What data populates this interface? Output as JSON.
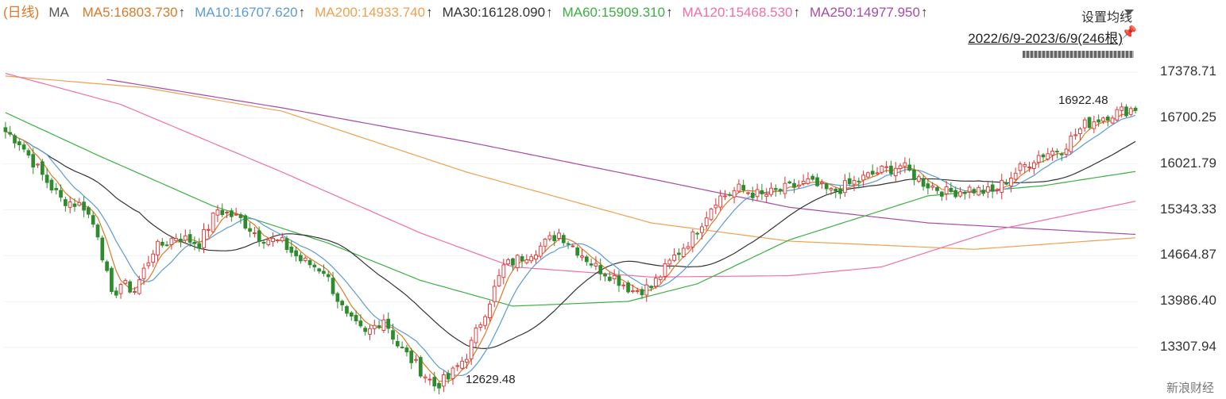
{
  "legend": {
    "period": "(日线)",
    "ma": "MA",
    "items": [
      {
        "label": "MA5:16803.730",
        "arrow": "↑",
        "color": "#d97a2a"
      },
      {
        "label": "MA10:16707.620",
        "arrow": "↑",
        "color": "#5b9bd5"
      },
      {
        "label": "MA200:14933.740",
        "arrow": "↑",
        "color": "#f0a050"
      },
      {
        "label": "MA30:16128.090",
        "arrow": "↑",
        "color": "#333333"
      },
      {
        "label": "MA60:15909.310",
        "arrow": "↑",
        "color": "#3cb043"
      },
      {
        "label": "MA120:15468.530",
        "arrow": "↑",
        "color": "#f06fa8"
      },
      {
        "label": "MA250:14977.950",
        "arrow": "↑",
        "color": "#a64ca6"
      }
    ]
  },
  "toolbar": {
    "settings_label": "设置均线",
    "range_label": "2022/6/9-2023/6/9(246根)",
    "pin_icon": "pin-icon"
  },
  "watermark": "新浪财经",
  "chart_data": {
    "type": "candlestick",
    "period": "daily",
    "ylim": [
      12700,
      17600
    ],
    "y_ticks": [
      "17378.71",
      "16700.25",
      "16021.79",
      "15343.33",
      "14664.87",
      "13986.40",
      "13307.94"
    ],
    "annotations": {
      "high": "16922.48",
      "low": "12629.48"
    },
    "colors": {
      "up": "#e03030",
      "down": "#2e8b2e"
    },
    "anchors": [
      [
        0,
        16500
      ],
      [
        3,
        16350
      ],
      [
        8,
        15850
      ],
      [
        12,
        15500
      ],
      [
        17,
        15400
      ],
      [
        20,
        15000
      ],
      [
        23,
        14050
      ],
      [
        25,
        14250
      ],
      [
        28,
        14150
      ],
      [
        32,
        14750
      ],
      [
        37,
        14950
      ],
      [
        42,
        14850
      ],
      [
        46,
        15350
      ],
      [
        51,
        15200
      ],
      [
        55,
        14950
      ],
      [
        60,
        14850
      ],
      [
        64,
        14600
      ],
      [
        69,
        14450
      ],
      [
        74,
        13750
      ],
      [
        78,
        13500
      ],
      [
        82,
        13750
      ],
      [
        85,
        13350
      ],
      [
        89,
        13050
      ],
      [
        93,
        12750
      ],
      [
        96,
        12850
      ],
      [
        100,
        13200
      ],
      [
        104,
        13850
      ],
      [
        108,
        14500
      ],
      [
        112,
        14650
      ],
      [
        116,
        14800
      ],
      [
        120,
        15000
      ],
      [
        124,
        14750
      ],
      [
        128,
        14500
      ],
      [
        132,
        14350
      ],
      [
        136,
        14150
      ],
      [
        140,
        14200
      ],
      [
        145,
        14650
      ],
      [
        149,
        14950
      ],
      [
        154,
        15500
      ],
      [
        159,
        15650
      ],
      [
        164,
        15550
      ],
      [
        169,
        15650
      ],
      [
        174,
        15750
      ],
      [
        179,
        15600
      ],
      [
        184,
        15750
      ],
      [
        189,
        15900
      ],
      [
        194,
        16000
      ],
      [
        199,
        15750
      ],
      [
        204,
        15600
      ],
      [
        209,
        15650
      ],
      [
        214,
        15600
      ],
      [
        219,
        15900
      ],
      [
        224,
        16150
      ],
      [
        229,
        16250
      ],
      [
        234,
        16600
      ],
      [
        239,
        16750
      ],
      [
        245,
        16850
      ]
    ],
    "ma_lines": [
      {
        "name": "MA250",
        "color": "#a64ca6",
        "start": 22,
        "anchors": [
          [
            22,
            17270
          ],
          [
            60,
            16850
          ],
          [
            100,
            16350
          ],
          [
            140,
            15800
          ],
          [
            170,
            15380
          ],
          [
            200,
            15150
          ],
          [
            245,
            14980
          ]
        ]
      },
      {
        "name": "MA200",
        "color": "#f0a050",
        "start": 0,
        "anchors": [
          [
            0,
            17320
          ],
          [
            30,
            17150
          ],
          [
            60,
            16800
          ],
          [
            100,
            15900
          ],
          [
            140,
            15150
          ],
          [
            170,
            14880
          ],
          [
            210,
            14760
          ],
          [
            245,
            14930
          ]
        ]
      },
      {
        "name": "MA120",
        "color": "#f06fa8",
        "start": 0,
        "anchors": [
          [
            0,
            17360
          ],
          [
            25,
            16900
          ],
          [
            60,
            15900
          ],
          [
            90,
            15000
          ],
          [
            110,
            14500
          ],
          [
            140,
            14350
          ],
          [
            170,
            14370
          ],
          [
            190,
            14500
          ],
          [
            215,
            15050
          ],
          [
            245,
            15470
          ]
        ]
      },
      {
        "name": "MA60",
        "color": "#3cb043",
        "start": 0,
        "anchors": [
          [
            0,
            16780
          ],
          [
            20,
            16150
          ],
          [
            45,
            15400
          ],
          [
            70,
            14850
          ],
          [
            90,
            14300
          ],
          [
            110,
            13920
          ],
          [
            135,
            13990
          ],
          [
            150,
            14250
          ],
          [
            170,
            14900
          ],
          [
            200,
            15550
          ],
          [
            225,
            15700
          ],
          [
            245,
            15910
          ]
        ]
      }
    ]
  }
}
